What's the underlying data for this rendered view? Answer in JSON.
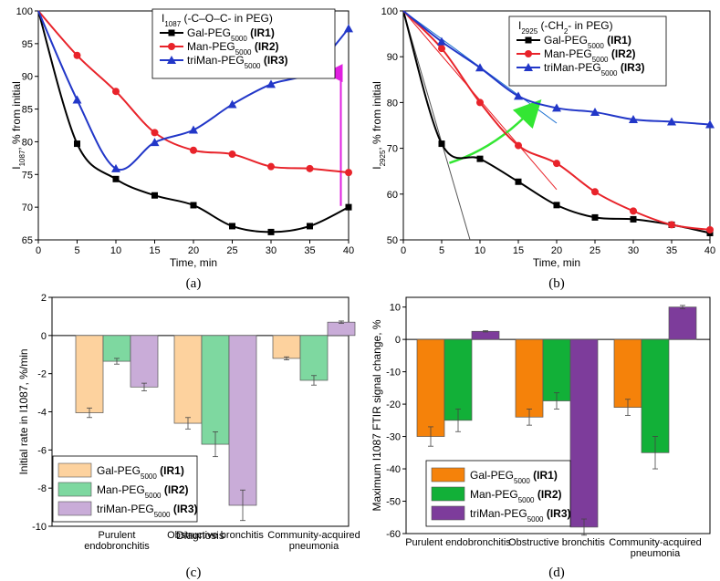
{
  "chart_data": [
    {
      "type": "line",
      "panel_label": "(a)",
      "title": "",
      "xlabel": "Time, min",
      "ylabel": "I1087, % from initial",
      "xlim": [
        0,
        40
      ],
      "ylim": [
        65,
        100
      ],
      "xticks": [
        0,
        5,
        10,
        15,
        20,
        25,
        30,
        35,
        40
      ],
      "yticks": [
        65,
        70,
        75,
        80,
        85,
        90,
        95,
        100
      ],
      "legend_title": "I1087 (-C–O–C- in PEG)",
      "legend_position": "top-right",
      "annotation": "magenta upward arrow at t = 39 min",
      "series": [
        {
          "name": "Gal-PEG5000 (IR1)",
          "color": "#000000",
          "marker": "square",
          "x": [
            0,
            5,
            10,
            15,
            20,
            25,
            30,
            35,
            40
          ],
          "y": [
            100,
            79.7,
            74.3,
            71.8,
            70.3,
            67.1,
            66.2,
            67.1,
            70.0
          ]
        },
        {
          "name": "Man-PEG5000 (IR2)",
          "color": "#e8232a",
          "marker": "circle",
          "x": [
            0,
            5,
            10,
            15,
            20,
            25,
            30,
            35,
            40
          ],
          "y": [
            100,
            93.2,
            87.7,
            81.4,
            78.7,
            78.1,
            76.2,
            75.9,
            75.3
          ]
        },
        {
          "name": "triMan-PEG5000 (IR3)",
          "color": "#2237c8",
          "marker": "triangle",
          "x": [
            0,
            5,
            10,
            15,
            20,
            25,
            30,
            35,
            40
          ],
          "y": [
            100,
            86.4,
            75.9,
            79.9,
            81.8,
            85.7,
            88.8,
            90.7,
            97.3
          ]
        }
      ]
    },
    {
      "type": "line",
      "panel_label": "(b)",
      "title": "",
      "xlabel": "Time, min",
      "ylabel": "I2925, % from initial",
      "xlim": [
        0,
        40
      ],
      "ylim": [
        50,
        100
      ],
      "xticks": [
        0,
        5,
        10,
        15,
        20,
        25,
        30,
        35,
        40
      ],
      "yticks": [
        50,
        60,
        70,
        80,
        90,
        100
      ],
      "legend_title": "I2925 (-CH2- in PEG)",
      "legend_position": "top-right",
      "annotation": "green curved arrow from ~6 to ~17 min; linear tangent lines at t = 0",
      "series": [
        {
          "name": "Gal-PEG5000 (IR1)",
          "color": "#000000",
          "marker": "square",
          "x": [
            0,
            5,
            10,
            15,
            20,
            25,
            30,
            35,
            40
          ],
          "y": [
            100,
            71.0,
            67.7,
            62.7,
            57.6,
            54.9,
            54.5,
            53.3,
            51.5
          ]
        },
        {
          "name": "Man-PEG5000 (IR2)",
          "color": "#e8232a",
          "marker": "circle",
          "x": [
            0,
            5,
            10,
            15,
            20,
            25,
            30,
            35,
            40
          ],
          "y": [
            100,
            91.8,
            80.0,
            70.6,
            66.7,
            60.5,
            56.3,
            53.3,
            52.2
          ]
        },
        {
          "name": "triMan-PEG5000 (IR3)",
          "color": "#2237c8",
          "marker": "triangle",
          "x": [
            0,
            5,
            10,
            15,
            20,
            25,
            30,
            35,
            40
          ],
          "y": [
            100,
            93.3,
            87.6,
            81.4,
            78.8,
            77.9,
            76.3,
            75.8,
            75.2
          ]
        }
      ]
    },
    {
      "type": "bar",
      "panel_label": "(c)",
      "title": "",
      "xlabel": "Diagnosis",
      "ylabel": "Initial rate in I1087, %/min",
      "ylim": [
        -10,
        2
      ],
      "yticks": [
        -10,
        -8,
        -6,
        -4,
        -2,
        0,
        2
      ],
      "legend_position": "bottom-left",
      "categories": [
        "Purulent\nendobronchitis",
        "Obstructive bronchitis",
        "Community-acquired\npneumonia"
      ],
      "series": [
        {
          "name": "Gal-PEG5000 (IR1)",
          "color": "#fdd29e",
          "values": [
            -4.05,
            -4.6,
            -1.2
          ],
          "errors": [
            0.25,
            0.3,
            0.08
          ]
        },
        {
          "name": "Man-PEG5000 (IR2)",
          "color": "#7ed8a0",
          "values": [
            -1.35,
            -5.7,
            -2.35
          ],
          "errors": [
            0.15,
            0.65,
            0.25
          ]
        },
        {
          "name": "triMan-PEG5000 (IR3)",
          "color": "#c9acd8",
          "values": [
            -2.7,
            -8.9,
            0.7
          ],
          "errors": [
            0.2,
            0.8,
            0.06
          ]
        }
      ]
    },
    {
      "type": "bar",
      "panel_label": "(d)",
      "title": "",
      "xlabel": "",
      "ylabel": "Maximum I1087 FTIR signal change, %",
      "ylim": [
        -60,
        13
      ],
      "yticks": [
        -60,
        -50,
        -40,
        -30,
        -20,
        -10,
        0,
        10
      ],
      "legend_position": "bottom-left",
      "categories": [
        "Purulent endobronchitis",
        "Obstructive bronchitis",
        "Community-acquired\npneumonia"
      ],
      "series": [
        {
          "name": "Gal-PEG5000 (IR1)",
          "color": "#f5820a",
          "values": [
            -30,
            -24,
            -21
          ],
          "errors": [
            3,
            2.5,
            2.5
          ]
        },
        {
          "name": "Man-PEG5000 (IR2)",
          "color": "#12b038",
          "values": [
            -25,
            -19,
            -35
          ],
          "errors": [
            3.5,
            2.5,
            5
          ]
        },
        {
          "name": "triMan-PEG5000 (IR3)",
          "color": "#7d3c9b",
          "values": [
            2.5,
            -58,
            10
          ],
          "errors": [
            0.2,
            2.5,
            0.5
          ]
        }
      ]
    }
  ]
}
